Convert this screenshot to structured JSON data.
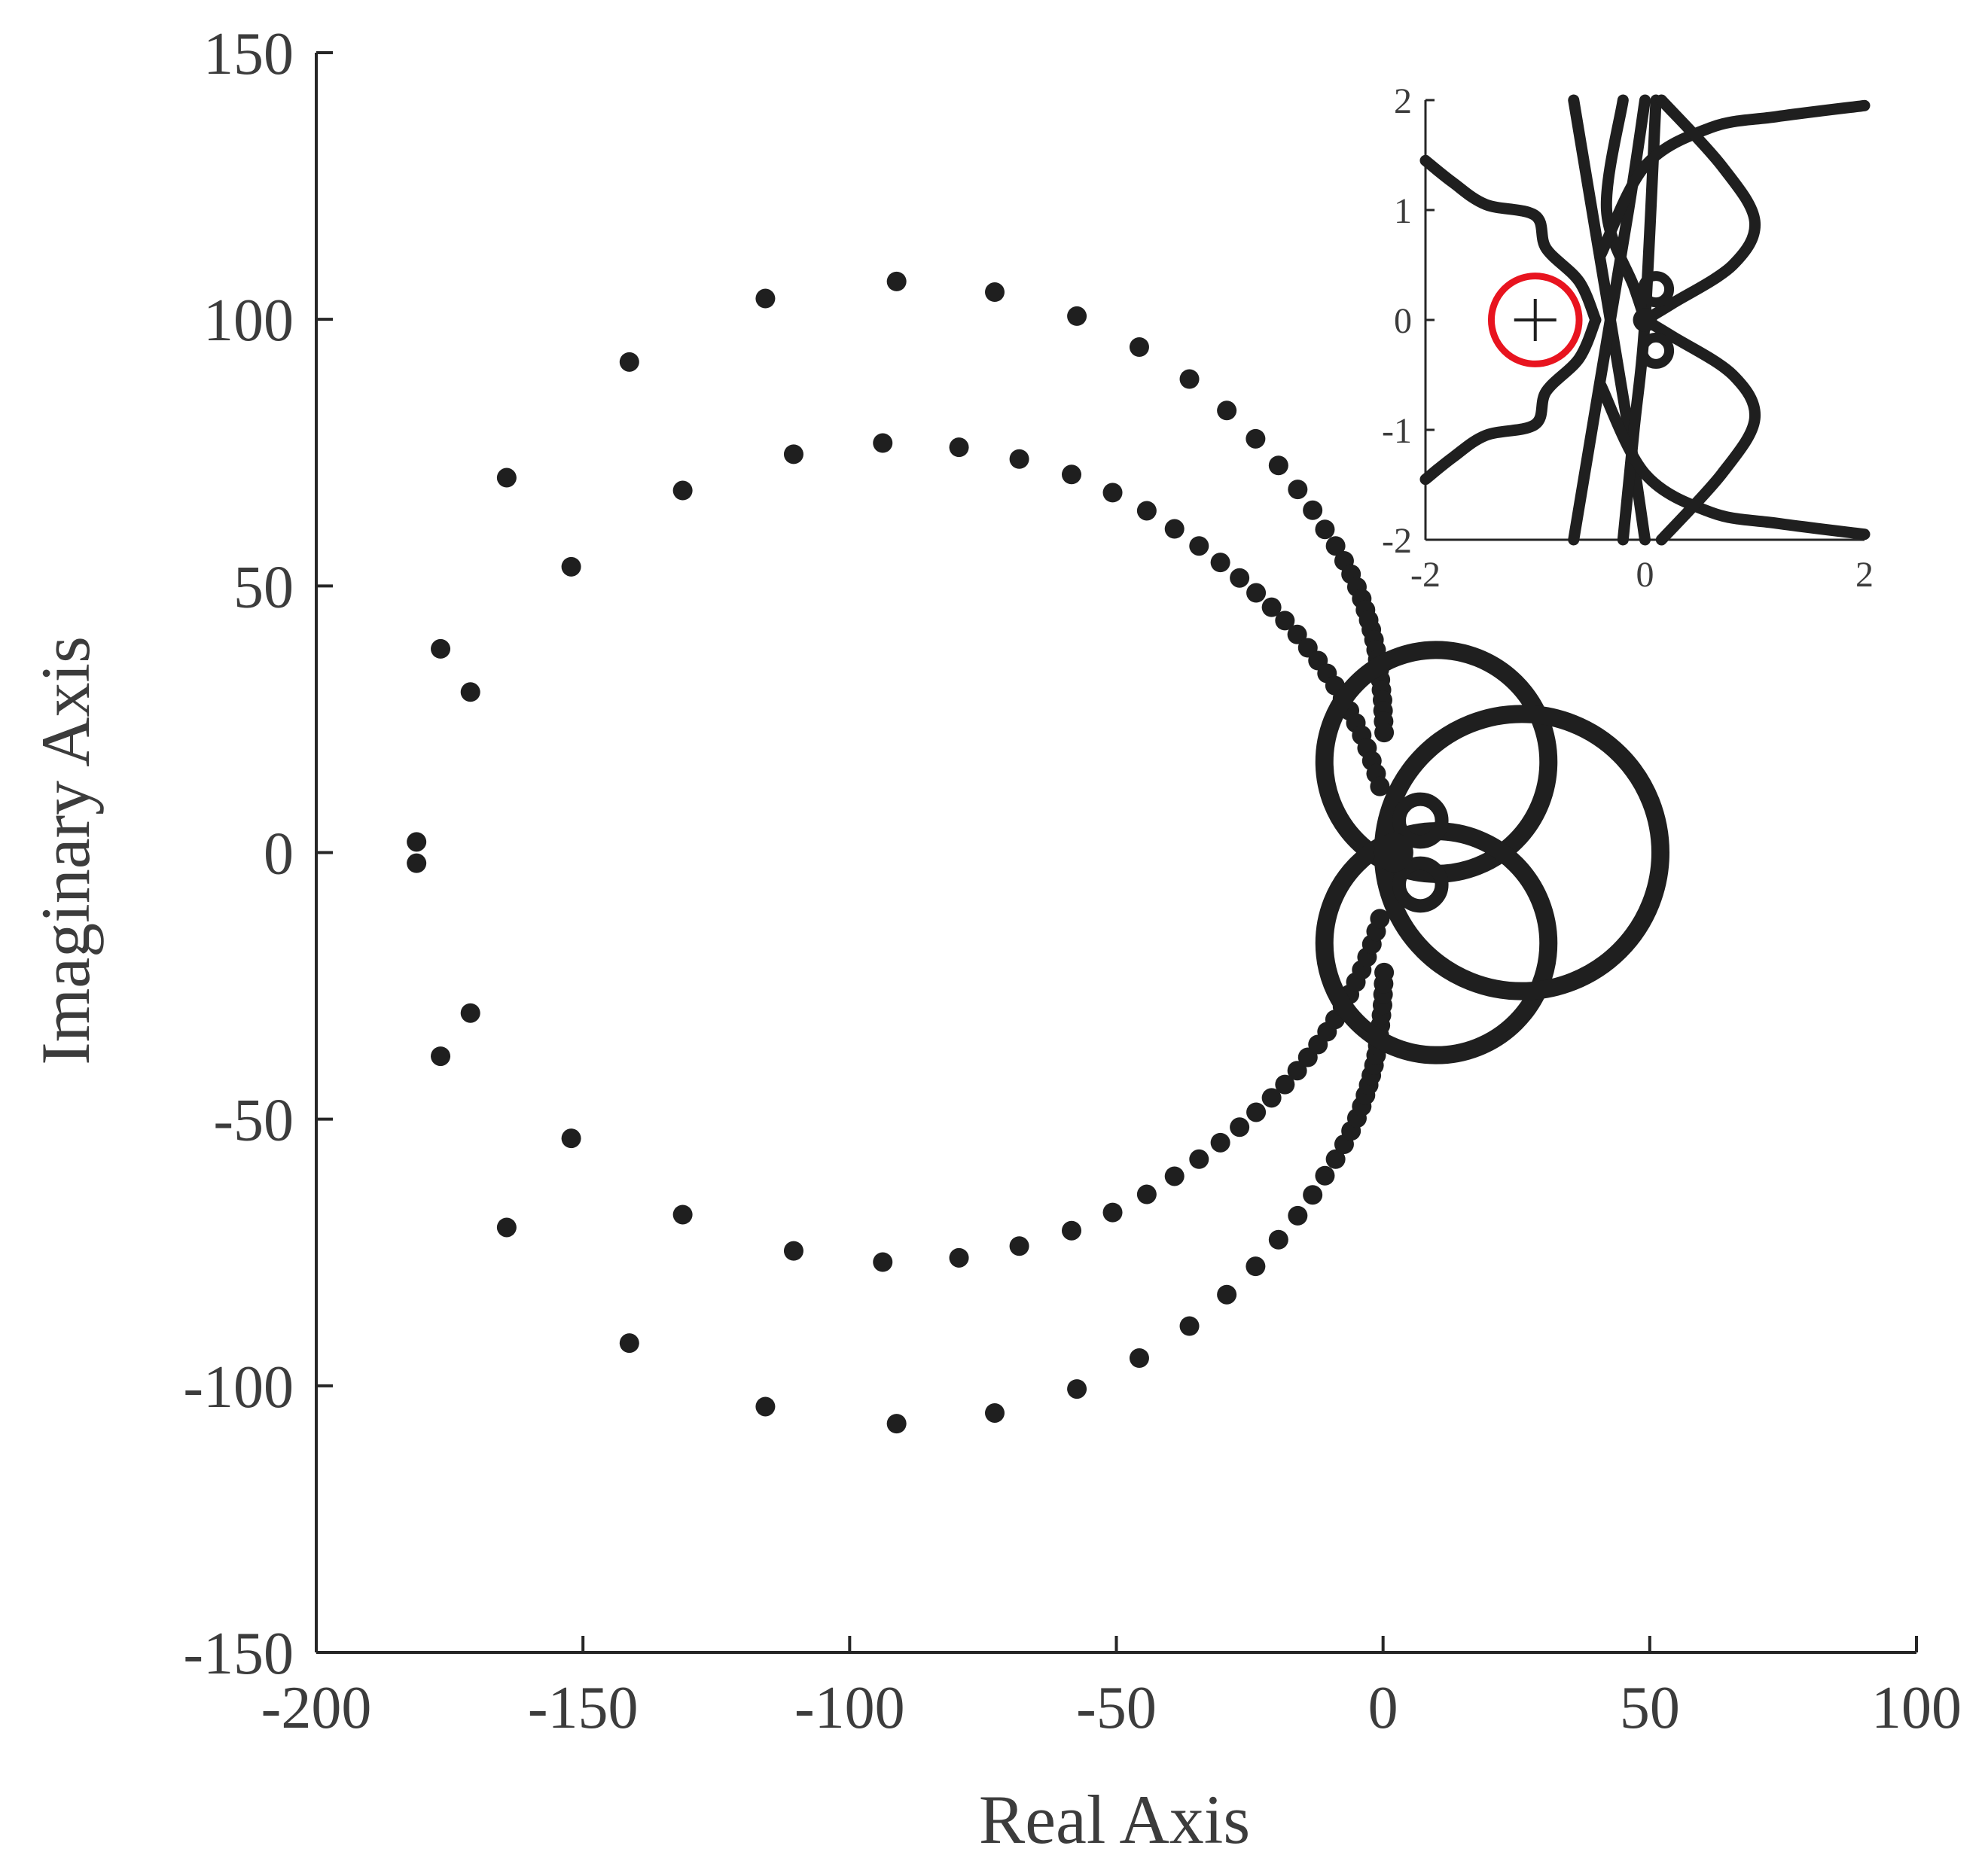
{
  "chart_data": [
    {
      "type": "scatter",
      "title": "",
      "xlabel": "Real Axis",
      "ylabel": "Imaginary Axis",
      "xlim": [
        -200,
        100
      ],
      "ylim": [
        -150,
        150
      ],
      "x_ticks": [
        "-200",
        "-150",
        "-100",
        "-50",
        "0",
        "50",
        "100"
      ],
      "y_ticks": [
        "-150",
        "-100",
        "-50",
        "0",
        "50",
        "100",
        "150"
      ],
      "grid": false,
      "marker_color": "#1f1f1f",
      "series": [
        {
          "points": [
            [
              -181.2,
              2
            ],
            [
              -176.7,
              38.2
            ],
            [
              -164.3,
              70.3
            ],
            [
              -141.3,
              92
            ],
            [
              -115.8,
              103.9
            ],
            [
              -91.2,
              107.1
            ],
            [
              -72.8,
              105.1
            ],
            [
              -57.4,
              100.6
            ],
            [
              -45.7,
              94.8
            ],
            [
              -36.3,
              88.8
            ],
            [
              -29.3,
              82.9
            ],
            [
              -23.9,
              77.6
            ],
            [
              -19.6,
              72.6
            ],
            [
              -16.0,
              68.1
            ],
            [
              -13.2,
              64.2
            ],
            [
              -10.9,
              60.6
            ],
            [
              -8.9,
              57.5
            ],
            [
              -7.3,
              54.7
            ],
            [
              -6.0,
              52.2
            ],
            [
              -4.9,
              49.8
            ],
            [
              -4.0,
              47.6
            ],
            [
              -3.3,
              45.5
            ],
            [
              -2.7,
              43.6
            ],
            [
              -2.2,
              41.8
            ],
            [
              -1.7,
              39.9
            ],
            [
              -1.3,
              38.0
            ],
            [
              -1.0,
              36.2
            ],
            [
              -0.7,
              34.3
            ],
            [
              -0.5,
              32.4
            ],
            [
              -0.3,
              30.5
            ],
            [
              -0.1,
              28.6
            ],
            [
              0.0,
              26.6
            ],
            [
              0.1,
              24.6
            ],
            [
              0.2,
              22.5
            ]
          ]
        },
        {
          "points": [
            [
              -171.1,
              30.1
            ],
            [
              -152.2,
              53.6
            ],
            [
              -131.3,
              67.9
            ],
            [
              -110.5,
              74.7
            ],
            [
              -93.8,
              76.8
            ],
            [
              -79.5,
              76.0
            ],
            [
              -68.2,
              73.8
            ],
            [
              -58.4,
              70.9
            ],
            [
              -50.7,
              67.5
            ],
            [
              -44.3,
              64.1
            ],
            [
              -39.1,
              60.7
            ],
            [
              -34.5,
              57.5
            ],
            [
              -30.5,
              54.4
            ],
            [
              -26.9,
              51.5
            ],
            [
              -23.8,
              48.7
            ],
            [
              -20.9,
              46.0
            ],
            [
              -18.4,
              43.5
            ],
            [
              -16.1,
              40.9
            ],
            [
              -14.1,
              38.4
            ],
            [
              -12.2,
              36.0
            ],
            [
              -10.5,
              33.6
            ],
            [
              -9.0,
              31.3
            ],
            [
              -7.6,
              28.9
            ],
            [
              -6.3,
              26.6
            ],
            [
              -5.1,
              24.3
            ],
            [
              -4.0,
              22.0
            ],
            [
              -3.0,
              19.6
            ],
            [
              -2.1,
              17.2
            ],
            [
              -1.3,
              14.8
            ],
            [
              -0.6,
              12.4
            ]
          ]
        },
        {
          "closed_loops": [
            {
              "cx": 10,
              "cy": 17,
              "r": 21
            },
            {
              "cx": 10,
              "cy": -17,
              "r": 21
            },
            {
              "cx": 26,
              "cy": 0,
              "r": 26
            },
            {
              "cx": 7,
              "cy": 6,
              "r": 4
            },
            {
              "cx": 7,
              "cy": -6,
              "r": 4
            }
          ]
        }
      ],
      "note_symmetry": "points mirrored about the real axis"
    },
    {
      "type": "line",
      "title": "",
      "xlabel": "",
      "ylabel": "",
      "xlim": [
        -2,
        2
      ],
      "ylim": [
        -2,
        2
      ],
      "x_ticks": [
        "-2",
        "0",
        "2"
      ],
      "y_ticks": [
        "-2",
        "-1",
        "0",
        "1",
        "2"
      ],
      "grid": false,
      "critical_point": [
        -1,
        0
      ],
      "critical_marker": "+",
      "critical_circle": {
        "center": [
          -1,
          0
        ],
        "radius": 0.4,
        "color": "#e8141f"
      },
      "line_color": "#1f1f1f",
      "curves": [
        [
          [
            -2,
            1.45
          ],
          [
            -1.75,
            1.25
          ],
          [
            -1.45,
            1.05
          ],
          [
            -1.0,
            0.95
          ],
          [
            -0.9,
            0.65
          ],
          [
            -0.6,
            0.35
          ],
          [
            -0.45,
            0.0
          ]
        ],
        [
          [
            -2,
            -1.45
          ],
          [
            -1.75,
            -1.25
          ],
          [
            -1.45,
            -1.05
          ],
          [
            -1.0,
            -0.95
          ],
          [
            -0.9,
            -0.65
          ],
          [
            -0.6,
            -0.35
          ],
          [
            -0.45,
            0.0
          ]
        ],
        [
          [
            -0.65,
            2.0
          ],
          [
            -0.45,
            0.8
          ],
          [
            -0.15,
            -1.0
          ],
          [
            0.0,
            -2.0
          ]
        ],
        [
          [
            -0.65,
            -2.0
          ],
          [
            -0.45,
            -0.8
          ],
          [
            -0.15,
            1.0
          ],
          [
            0.0,
            2.0
          ]
        ],
        [
          [
            0.1,
            2.0
          ],
          [
            0.0,
            0.0
          ],
          [
            -0.1,
            -1.0
          ],
          [
            -0.2,
            -2.0
          ]
        ],
        [
          [
            -0.2,
            2.0
          ],
          [
            -0.35,
            1.0
          ],
          [
            -0.1,
            0.3
          ],
          [
            0.0,
            0.0
          ]
        ],
        [
          [
            -0.4,
            0.6
          ],
          [
            0.0,
            1.4
          ],
          [
            0.6,
            1.75
          ],
          [
            1.2,
            1.85
          ],
          [
            2.0,
            1.95
          ]
        ],
        [
          [
            -0.4,
            -0.6
          ],
          [
            0.0,
            -1.4
          ],
          [
            0.6,
            -1.75
          ],
          [
            1.2,
            -1.85
          ],
          [
            2.0,
            -1.95
          ]
        ],
        [
          [
            0.15,
            2.0
          ],
          [
            0.7,
            1.4
          ],
          [
            1.0,
            0.9
          ],
          [
            0.8,
            0.5
          ],
          [
            0.25,
            0.15
          ],
          [
            0.0,
            0.0
          ]
        ],
        [
          [
            0.15,
            -2.0
          ],
          [
            0.7,
            -1.4
          ],
          [
            1.0,
            -0.9
          ],
          [
            0.8,
            -0.5
          ],
          [
            0.25,
            -0.15
          ],
          [
            0.0,
            0.0
          ]
        ]
      ],
      "small_loops": [
        {
          "cx": 0.1,
          "cy": 0.28,
          "r": 0.12
        },
        {
          "cx": 0.1,
          "cy": -0.28,
          "r": 0.12
        }
      ]
    }
  ]
}
